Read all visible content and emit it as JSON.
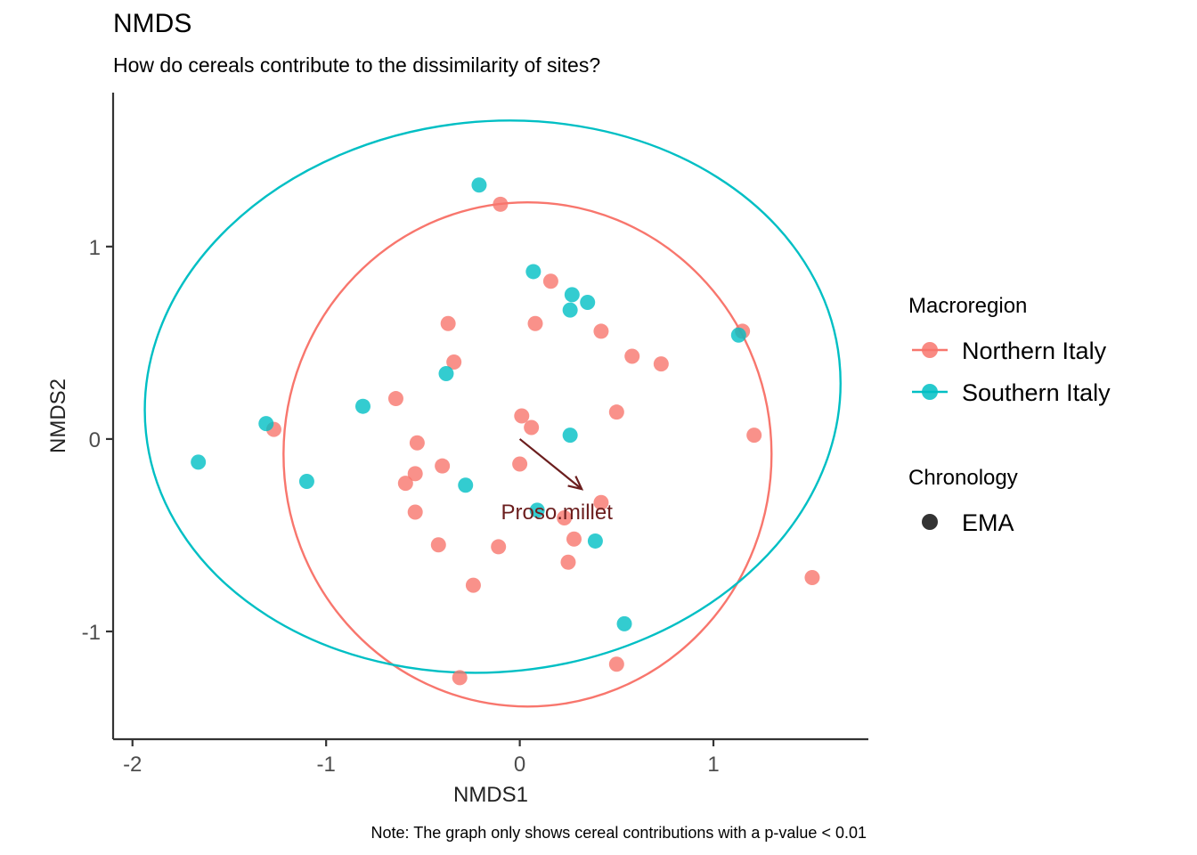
{
  "chart_data": {
    "type": "scatter",
    "title": "NMDS",
    "subtitle": "How do cereals contribute to the dissimilarity of sites?",
    "xlabel": "NMDS1",
    "ylabel": "NMDS2",
    "caption": "Note: The graph only shows cereal contributions with a p-value < 0.01",
    "xlim": [
      -2.1,
      1.8
    ],
    "ylim": [
      -1.56,
      1.8
    ],
    "xticks": [
      "-2",
      "-1",
      "0",
      "1"
    ],
    "xtick_values": [
      -2,
      -1,
      0,
      1
    ],
    "yticks": [
      "-1",
      "0",
      "1"
    ],
    "ytick_values": [
      -1,
      0,
      1
    ],
    "grid": false,
    "legend_placement": "right",
    "legend": {
      "color_title": "Macroregion",
      "shape_title": "Chronology",
      "shape_label": "EMA"
    },
    "series": [
      {
        "name": "Northern Italy",
        "color": "#F8766D",
        "ellipse": {
          "cx": 0.04,
          "cy": -0.08,
          "rx": 1.26,
          "ry": 1.31,
          "angle": 0
        },
        "points": [
          [
            -0.1,
            1.22
          ],
          [
            0.16,
            0.82
          ],
          [
            -0.37,
            0.6
          ],
          [
            0.08,
            0.6
          ],
          [
            0.42,
            0.56
          ],
          [
            0.58,
            0.43
          ],
          [
            0.73,
            0.39
          ],
          [
            1.15,
            0.56
          ],
          [
            -0.34,
            0.4
          ],
          [
            -0.64,
            0.21
          ],
          [
            0.01,
            0.12
          ],
          [
            0.06,
            0.06
          ],
          [
            0.5,
            0.14
          ],
          [
            1.21,
            0.02
          ],
          [
            -1.27,
            0.05
          ],
          [
            -0.53,
            -0.02
          ],
          [
            0.0,
            -0.13
          ],
          [
            -0.4,
            -0.14
          ],
          [
            -0.54,
            -0.18
          ],
          [
            -0.59,
            -0.23
          ],
          [
            0.42,
            -0.33
          ],
          [
            0.23,
            -0.41
          ],
          [
            -0.54,
            -0.38
          ],
          [
            0.28,
            -0.52
          ],
          [
            -0.42,
            -0.55
          ],
          [
            -0.11,
            -0.56
          ],
          [
            0.25,
            -0.64
          ],
          [
            -0.24,
            -0.76
          ],
          [
            1.51,
            -0.72
          ],
          [
            0.5,
            -1.17
          ],
          [
            -0.31,
            -1.24
          ]
        ]
      },
      {
        "name": "Southern Italy",
        "color": "#00BFC4",
        "ellipse": {
          "cx": -0.14,
          "cy": 0.22,
          "rx": 1.8,
          "ry": 1.43,
          "angle": -6
        },
        "points": [
          [
            -0.21,
            1.32
          ],
          [
            0.07,
            0.87
          ],
          [
            0.27,
            0.75
          ],
          [
            0.35,
            0.71
          ],
          [
            0.26,
            0.67
          ],
          [
            1.13,
            0.54
          ],
          [
            -0.38,
            0.34
          ],
          [
            -0.81,
            0.17
          ],
          [
            -1.31,
            0.08
          ],
          [
            0.26,
            0.02
          ],
          [
            -1.66,
            -0.12
          ],
          [
            -1.1,
            -0.22
          ],
          [
            -0.28,
            -0.24
          ],
          [
            0.09,
            -0.37
          ],
          [
            0.39,
            -0.53
          ],
          [
            0.54,
            -0.96
          ]
        ]
      }
    ],
    "arrows": [
      {
        "label": "Proso.millet",
        "x0": 0.0,
        "y0": 0.0,
        "x1": 0.32,
        "y1": -0.26
      }
    ]
  },
  "colors": {
    "arrow": "#6b1e1e",
    "axis": "#333333"
  }
}
